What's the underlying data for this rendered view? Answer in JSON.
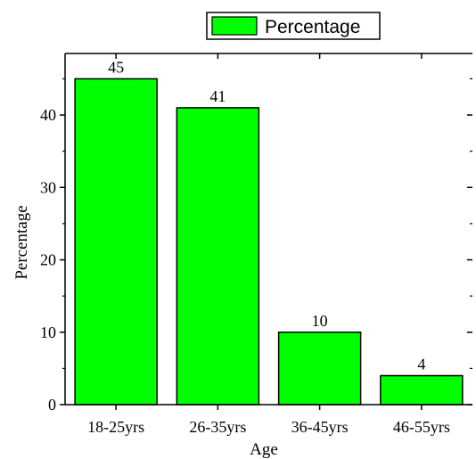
{
  "chart_data": {
    "type": "bar",
    "categories": [
      "18-25yrs",
      "26-35yrs",
      "36-45yrs",
      "46-55yrs"
    ],
    "series": [
      {
        "name": "Percentage",
        "values": [
          45,
          41,
          10,
          4
        ]
      }
    ],
    "data_labels": [
      "45",
      "41",
      "10",
      "4"
    ],
    "xlabel": "Age",
    "ylabel": "Percentage",
    "ylim": [
      0,
      48.5
    ],
    "yticks": [
      0,
      10,
      20,
      30,
      40
    ],
    "grid": false,
    "legend_position": "top",
    "bar_color": "#00ff00",
    "bar_edge_color": "#000000"
  }
}
